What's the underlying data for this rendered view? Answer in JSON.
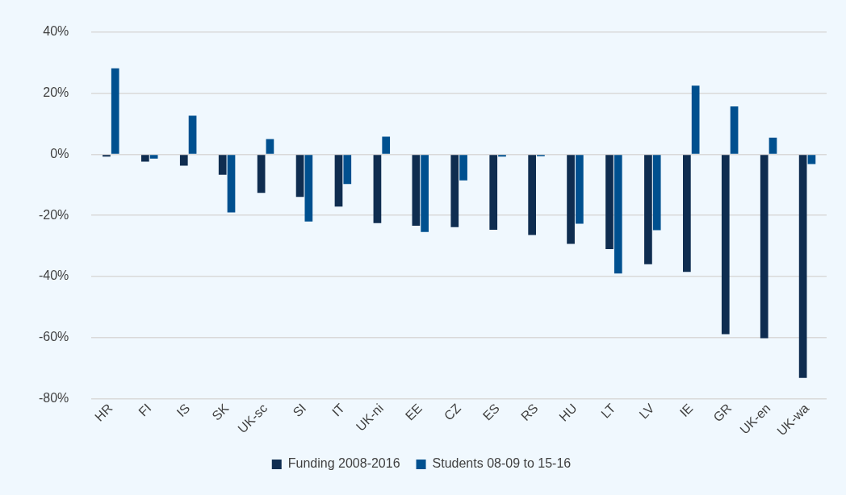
{
  "chart_data": {
    "type": "bar",
    "categories": [
      "HR",
      "FI",
      "IS",
      "SK",
      "UK-sc",
      "SI",
      "IT",
      "UK-ni",
      "EE",
      "CZ",
      "ES",
      "RS",
      "HU",
      "LT",
      "LV",
      "IE",
      "GR",
      "UK-en",
      "UK-wa"
    ],
    "series": [
      {
        "name": "Funding 2008-2016",
        "color": "#0f2d50",
        "values": [
          -0.7,
          -2.4,
          -3.7,
          -6.7,
          -12.6,
          -13.9,
          -17.1,
          -22.5,
          -23.4,
          -23.8,
          -24.7,
          -26.4,
          -29.3,
          -31.0,
          -36.0,
          -38.5,
          -58.9,
          -60.2,
          -73.2
        ]
      },
      {
        "name": "Students 08-09 to 15-16",
        "color": "#00508f",
        "values": [
          28.2,
          -1.4,
          12.7,
          -19.0,
          5.0,
          -22.0,
          -9.7,
          5.8,
          -25.4,
          -8.5,
          -0.7,
          -0.6,
          -22.7,
          -39.0,
          -24.8,
          22.5,
          15.7,
          5.5,
          -3.2
        ]
      }
    ],
    "ylim": [
      -80,
      40
    ],
    "yticks": [
      {
        "value": -80,
        "label": "-80%"
      },
      {
        "value": -60,
        "label": "-60%"
      },
      {
        "value": -40,
        "label": "-40%"
      },
      {
        "value": -20,
        "label": "-20%"
      },
      {
        "value": 0,
        "label": "0%"
      },
      {
        "value": 20,
        "label": "20%"
      },
      {
        "value": 40,
        "label": "40%"
      }
    ],
    "grid": "y",
    "legend": "bottom"
  }
}
